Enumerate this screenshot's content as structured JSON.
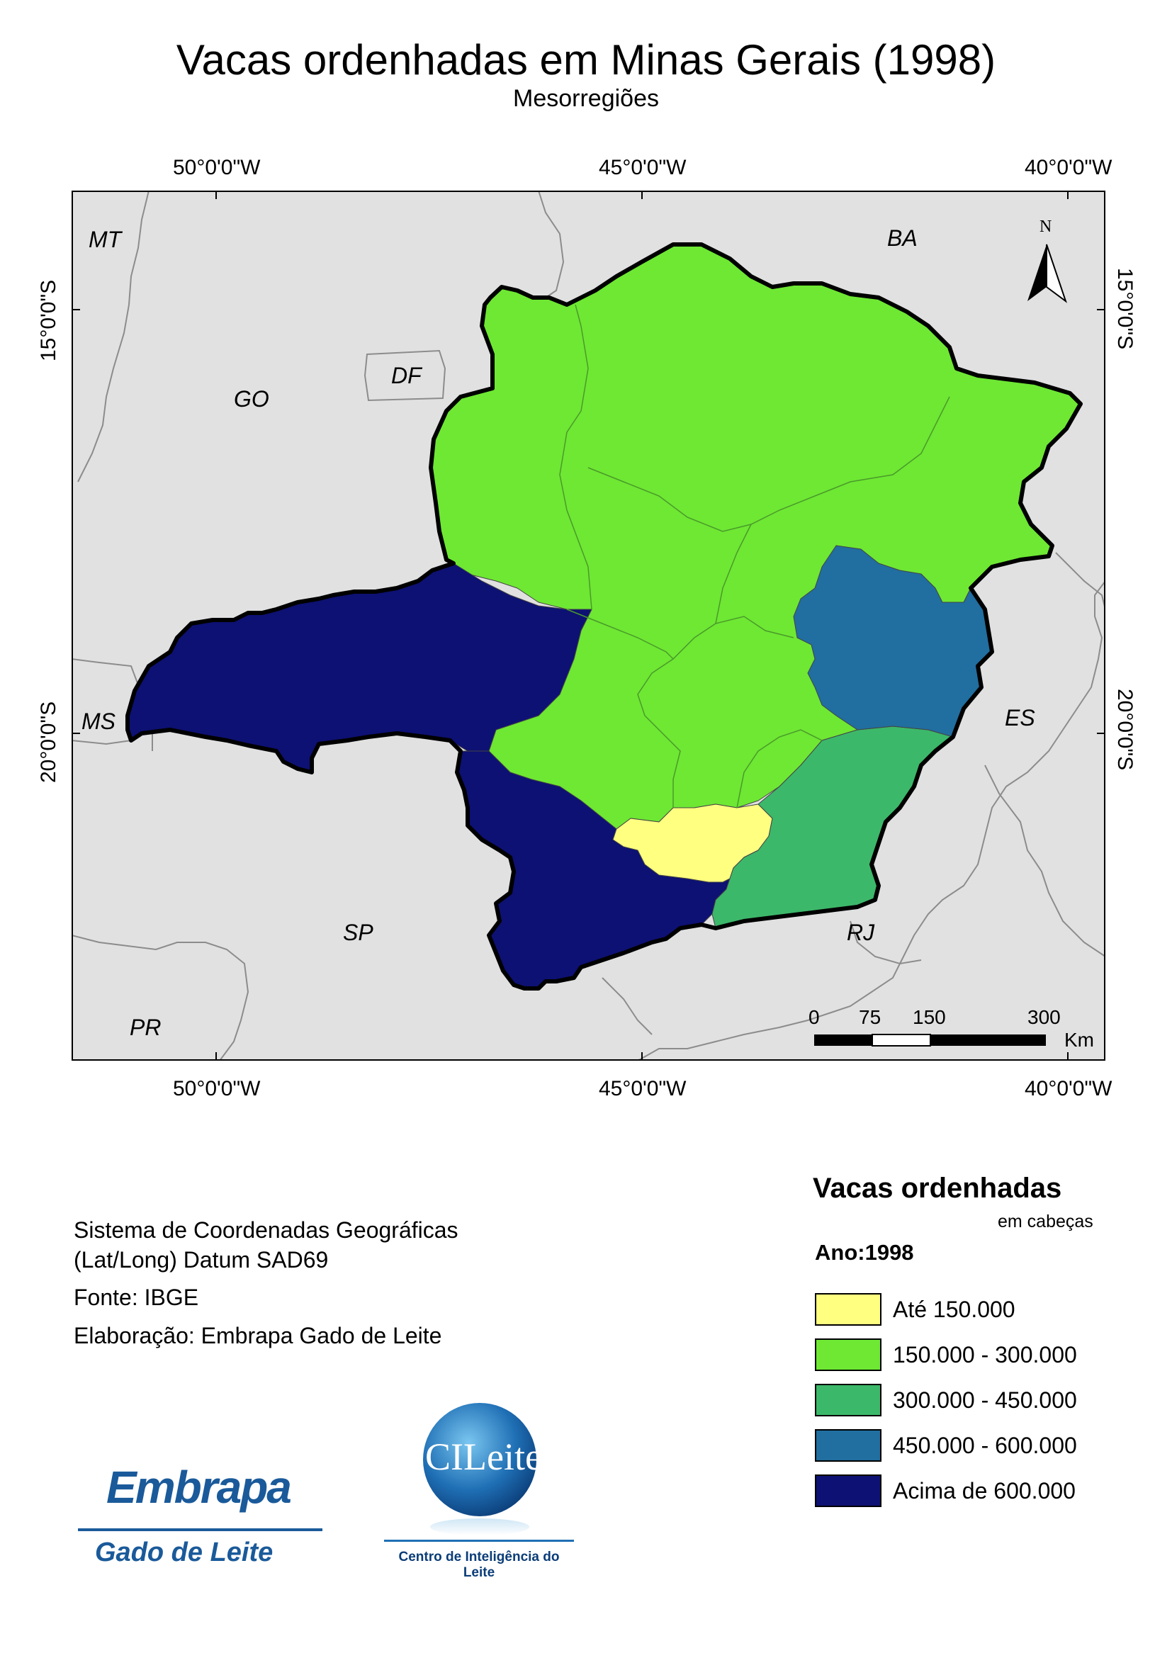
{
  "title": "Vacas ordenhadas em Minas Gerais (1998)",
  "subtitle": "Mesorregiões",
  "graticule": {
    "top_labels": [
      "50°0'0\"W",
      "45°0'0\"W",
      "40°0'0\"W"
    ],
    "bottom_labels": [
      "50°0'0\"W",
      "45°0'0\"W",
      "40°0'0\"W"
    ],
    "left_labels": [
      "15°0'0\"S",
      "20°0'0\"S"
    ],
    "right_labels": [
      "15°0'0\"S",
      "20°0'0\"S"
    ]
  },
  "states": [
    "MT",
    "GO",
    "DF",
    "BA",
    "MS",
    "ES",
    "SP",
    "RJ",
    "PR"
  ],
  "north_arrow": "N",
  "scale_bar": {
    "ticks": [
      "0",
      "75",
      "150",
      "300"
    ],
    "unit": "Km"
  },
  "info": {
    "coord_system_line1": "Sistema de Coordenadas Geográficas",
    "coord_system_line2": "(Lat/Long) Datum SAD69",
    "source": "Fonte: IBGE",
    "author": "Elaboração: Embrapa Gado de Leite"
  },
  "legend": {
    "title": "Vacas ordenhadas",
    "unit": "em cabeças",
    "year": "Ano:1998",
    "items": [
      {
        "label": "Até 150.000",
        "color": "#ffff80"
      },
      {
        "label": "150.000 - 300.000",
        "color": "#6ee833"
      },
      {
        "label": "300.000 - 450.000",
        "color": "#3cb86a"
      },
      {
        "label": "450.000 - 600.000",
        "color": "#216ea0"
      },
      {
        "label": "Acima de 600.000",
        "color": "#0d1173"
      }
    ]
  },
  "logos": {
    "embrapa": "Embrapa",
    "embrapa_sub": "Gado de Leite",
    "cileite": "CILeite",
    "cileite_sub": "Centro de Inteligência do Leite"
  },
  "colors": {
    "background_land": "#e1e1e1",
    "border": "#8c8c8c"
  }
}
